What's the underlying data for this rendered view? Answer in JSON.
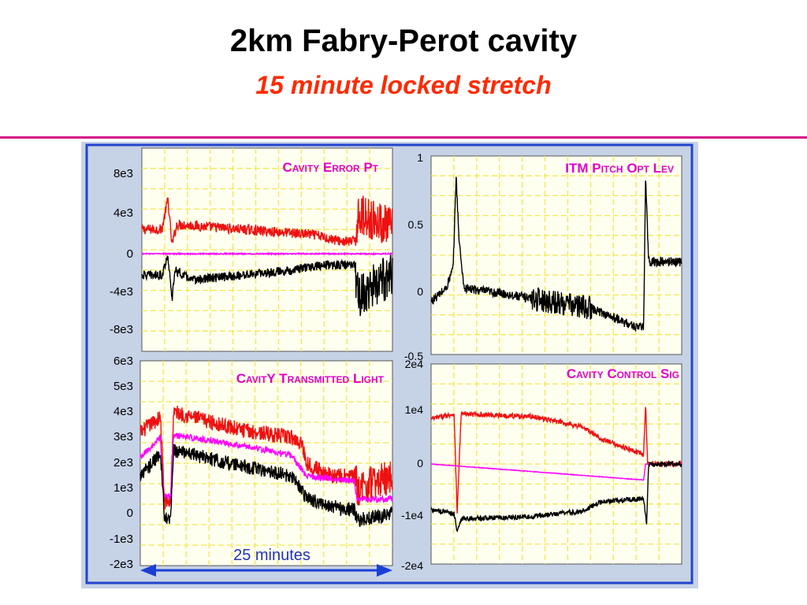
{
  "slide": {
    "title": "2km Fabry-Perot cavity",
    "subtitle": "15 minute locked stretch"
  },
  "colors": {
    "subtitle": "#ff2a00",
    "rule": "#d4148c",
    "panel_bg": "#c6d2e6",
    "panel_border": "#2244cc",
    "plot_bg": "#fffff0",
    "grid": "#f2e850",
    "label": "#e000c8",
    "red": "#ee1111",
    "black": "#000000",
    "magenta": "#ff00ff",
    "arrow": "#1a3fd6",
    "arrow_text": "#2233bb"
  },
  "chart_data": [
    {
      "type": "line",
      "title": "Cavity Error Pt",
      "x": {
        "range": [
          0,
          25
        ],
        "unit": "minutes"
      },
      "yticks": [
        "8e3",
        "4e3",
        "0",
        "-4e3",
        "-8e3"
      ],
      "ylim": [
        -10000,
        10000
      ],
      "grid": true,
      "series": [
        {
          "color": "red",
          "points": [
            [
              0,
              2000
            ],
            [
              2,
              2000
            ],
            [
              2.6,
              5000
            ],
            [
              3,
              500
            ],
            [
              3.5,
              2500
            ],
            [
              10,
              2000
            ],
            [
              17,
              1500
            ],
            [
              20,
              800
            ],
            [
              21.2,
              800
            ],
            [
              21.6,
              3500
            ],
            [
              25,
              2200
            ]
          ],
          "noise": 500,
          "noisy_from": 21.3,
          "noisy_amp": 2000
        },
        {
          "color": "black",
          "points": [
            [
              0,
              -2500
            ],
            [
              2,
              -2500
            ],
            [
              2.6,
              -500
            ],
            [
              3,
              -5000
            ],
            [
              3.3,
              -2000
            ],
            [
              5,
              -3000
            ],
            [
              10,
              -2500
            ],
            [
              15,
              -2000
            ],
            [
              18,
              -1500
            ],
            [
              21.2,
              -1500
            ],
            [
              21.6,
              -4500
            ],
            [
              25,
              -2500
            ]
          ],
          "noise": 450,
          "noisy_from": 21.3,
          "noisy_amp": 2200
        },
        {
          "color": "magenta",
          "points": [
            [
              0,
              -400
            ],
            [
              25,
              -400
            ]
          ],
          "noise": 60
        }
      ]
    },
    {
      "type": "line",
      "title": "CavitY Transmitted Light",
      "x": {
        "range": [
          0,
          25
        ],
        "unit": "minutes"
      },
      "yticks": [
        "6e3",
        "5e3",
        "4e3",
        "3e3",
        "2e3",
        "1e3",
        "0",
        "-1e3",
        "-2e3"
      ],
      "ylim": [
        -2000,
        6000
      ],
      "grid": true,
      "series": [
        {
          "color": "red",
          "points": [
            [
              0,
              3200
            ],
            [
              2,
              3800
            ],
            [
              2.4,
              500
            ],
            [
              3,
              500
            ],
            [
              3.3,
              4000
            ],
            [
              10,
              3300
            ],
            [
              15,
              3000
            ],
            [
              16,
              2800
            ],
            [
              16.5,
              2000
            ],
            [
              19,
              1500
            ],
            [
              21.2,
              1500
            ],
            [
              21.6,
              1000
            ],
            [
              25,
              1500
            ]
          ],
          "noise": 300,
          "noisy_from": 21.3,
          "noisy_amp": 700
        },
        {
          "color": "magenta",
          "points": [
            [
              0,
              2200
            ],
            [
              2,
              3000
            ],
            [
              2.3,
              700
            ],
            [
              3,
              700
            ],
            [
              3.3,
              3100
            ],
            [
              10,
              2700
            ],
            [
              15,
              2300
            ],
            [
              16.5,
              1500
            ],
            [
              21.2,
              1300
            ],
            [
              21.5,
              600
            ],
            [
              25,
              600
            ]
          ],
          "noise": 120
        },
        {
          "color": "black",
          "points": [
            [
              0,
              1500
            ],
            [
              2,
              2400
            ],
            [
              2.4,
              -200
            ],
            [
              3,
              -200
            ],
            [
              3.3,
              2500
            ],
            [
              10,
              1900
            ],
            [
              15,
              1500
            ],
            [
              16.5,
              600
            ],
            [
              20,
              200
            ],
            [
              21.2,
              200
            ],
            [
              21.6,
              -200
            ],
            [
              25,
              0
            ]
          ],
          "noise": 280
        }
      ]
    },
    {
      "type": "line",
      "title": "ITM Pitch Opt Lev",
      "x": {
        "range": [
          0,
          25
        ],
        "unit": "minutes"
      },
      "yticks": [
        "1",
        "0.5",
        "0",
        "-0.5"
      ],
      "ylim": [
        -0.5,
        1
      ],
      "grid": true,
      "series": [
        {
          "color": "black",
          "points": [
            [
              0,
              -0.1
            ],
            [
              1.5,
              0
            ],
            [
              2.2,
              0.15
            ],
            [
              2.5,
              0.85
            ],
            [
              2.8,
              0.35
            ],
            [
              3.3,
              0
            ],
            [
              8,
              -0.05
            ],
            [
              16,
              -0.15
            ],
            [
              20,
              -0.28
            ],
            [
              21.2,
              -0.3
            ],
            [
              21.4,
              0.85
            ],
            [
              21.7,
              0.2
            ],
            [
              25,
              0.2
            ]
          ],
          "noise": 0.035,
          "noisy_from": 10,
          "noisy_to": 16,
          "noisy_amp": 0.09
        }
      ]
    },
    {
      "type": "line",
      "title": "Cavity Control Sig",
      "x": {
        "range": [
          0,
          25
        ],
        "unit": "minutes"
      },
      "yticks": [
        "2e4",
        "1e4",
        "0",
        "-1e4",
        "-2e4"
      ],
      "ylim": [
        -20000,
        20000
      ],
      "grid": true,
      "series": [
        {
          "color": "red",
          "points": [
            [
              0,
              9000
            ],
            [
              2.3,
              10000
            ],
            [
              2.6,
              -10000
            ],
            [
              3,
              10000
            ],
            [
              10,
              9500
            ],
            [
              15,
              7500
            ],
            [
              17,
              5000
            ],
            [
              21,
              2000
            ],
            [
              21.2,
              2000
            ],
            [
              21.4,
              12000
            ],
            [
              21.6,
              0
            ],
            [
              25,
              0
            ]
          ],
          "noise": 500
        },
        {
          "color": "magenta",
          "points": [
            [
              0,
              0
            ],
            [
              21.2,
              -3200
            ],
            [
              21.4,
              0
            ],
            [
              25,
              0
            ]
          ],
          "noise": 60
        },
        {
          "color": "black",
          "points": [
            [
              0,
              -9000
            ],
            [
              2.3,
              -10000
            ],
            [
              2.6,
              -13500
            ],
            [
              3,
              -11000
            ],
            [
              10,
              -10500
            ],
            [
              15,
              -9500
            ],
            [
              17,
              -7500
            ],
            [
              21,
              -7000
            ],
            [
              21.2,
              -7000
            ],
            [
              21.5,
              -12000
            ],
            [
              21.7,
              0
            ],
            [
              25,
              0
            ]
          ],
          "noise": 500
        }
      ]
    }
  ],
  "annotation": {
    "label": "25 minutes"
  }
}
